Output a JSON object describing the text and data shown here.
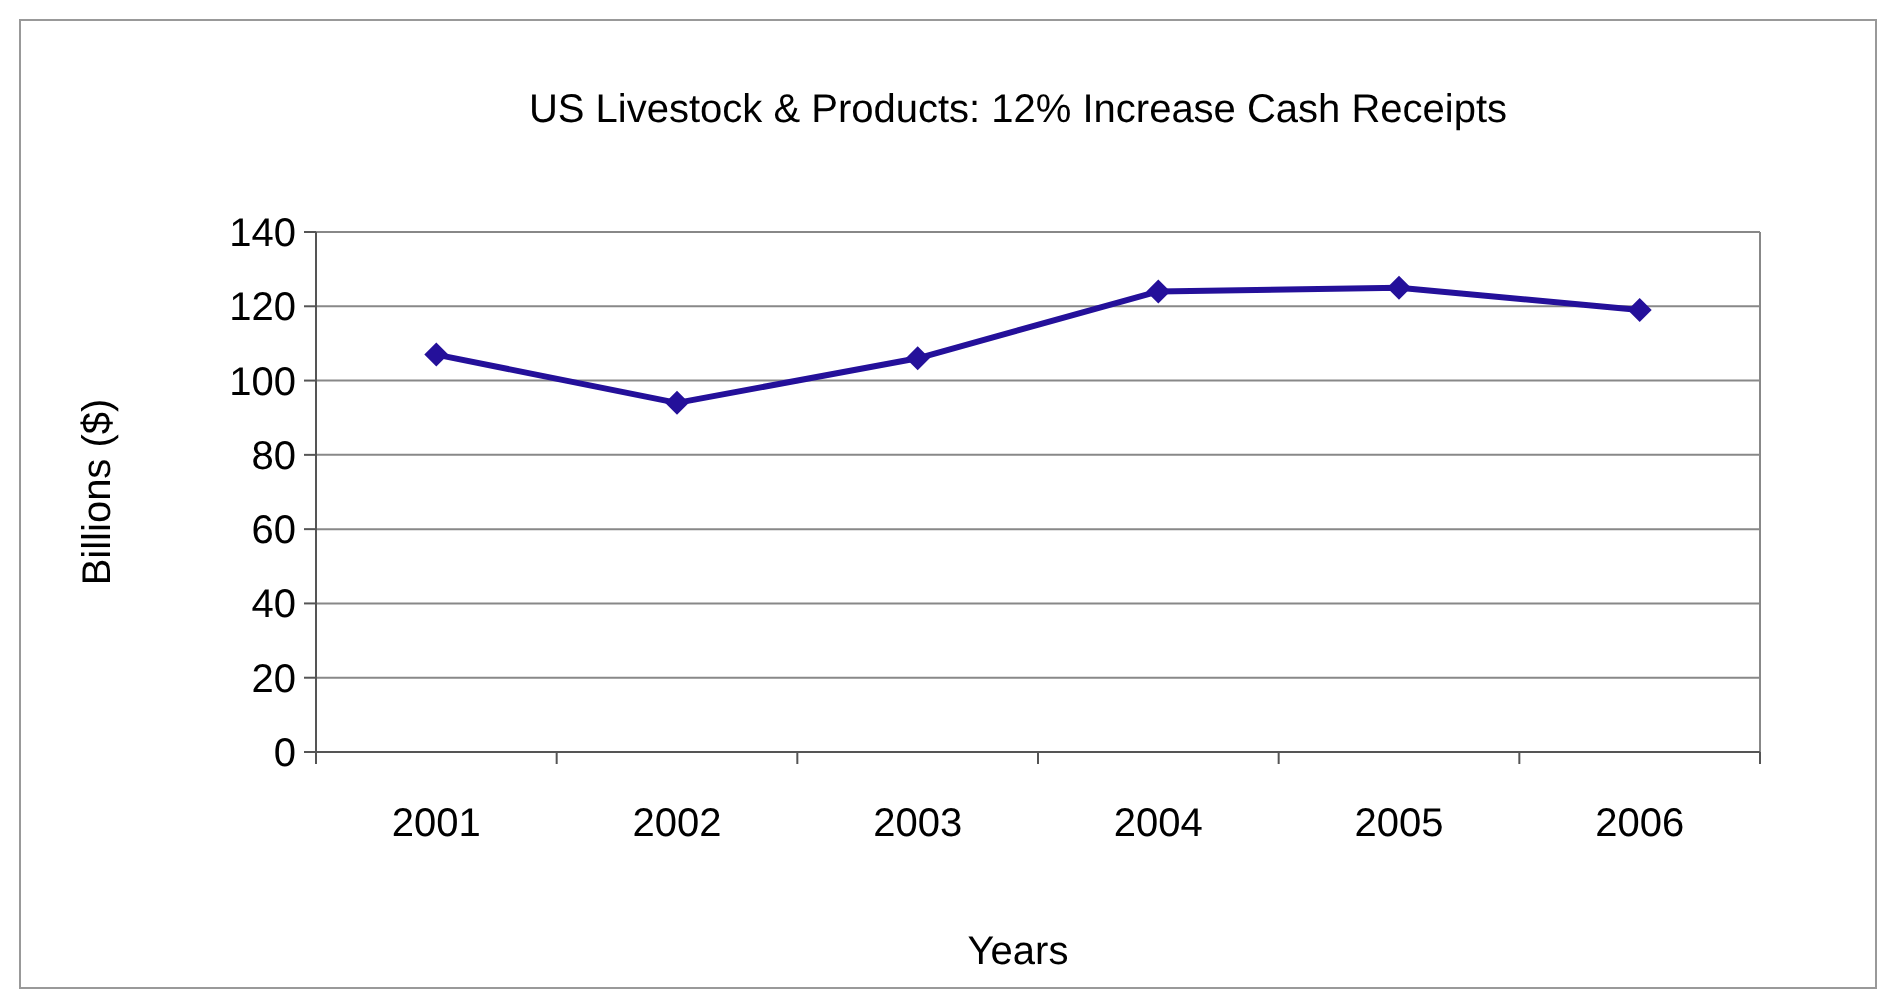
{
  "chart_data": {
    "type": "line",
    "title": "US Livestock & Products: 12% Increase Cash Receipts",
    "xlabel": "Years",
    "ylabel": "Billions ($)",
    "categories": [
      "2001",
      "2002",
      "2003",
      "2004",
      "2005",
      "2006"
    ],
    "series": [
      {
        "color": "#24109a",
        "values": [
          107,
          94,
          106,
          124,
          125,
          119
        ]
      }
    ],
    "ylim": [
      0,
      140
    ],
    "yticks": [
      0,
      20,
      40,
      60,
      80,
      100,
      120,
      140
    ],
    "grid": "y",
    "marker": "diamond",
    "line_style": "solid"
  }
}
